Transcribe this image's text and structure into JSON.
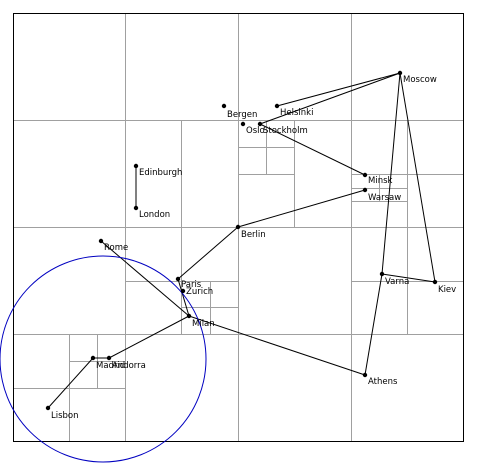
{
  "diagram": {
    "cities": [
      {
        "id": "moscow",
        "label": "Moscow"
      },
      {
        "id": "helsinki",
        "label": "Helsinki"
      },
      {
        "id": "bergen",
        "label": "Bergen"
      },
      {
        "id": "oslo",
        "label": "Oslo"
      },
      {
        "id": "stockholm",
        "label": "Stockholm"
      },
      {
        "id": "edinburgh",
        "label": "Edinburgh"
      },
      {
        "id": "london",
        "label": "London"
      },
      {
        "id": "minsk",
        "label": "Minsk"
      },
      {
        "id": "warsaw",
        "label": "Warsaw"
      },
      {
        "id": "berlin",
        "label": "Berlin"
      },
      {
        "id": "rome",
        "label": "Rome"
      },
      {
        "id": "paris",
        "label": "Paris"
      },
      {
        "id": "zurich",
        "label": "Zurich"
      },
      {
        "id": "milan",
        "label": "Milan"
      },
      {
        "id": "varna",
        "label": "Varna"
      },
      {
        "id": "kiev",
        "label": "Kiev"
      },
      {
        "id": "madrid",
        "label": "Madrid"
      },
      {
        "id": "andorra",
        "label": "Andorra"
      },
      {
        "id": "lisbon",
        "label": "Lisbon"
      },
      {
        "id": "athens",
        "label": "Athens"
      }
    ],
    "colors": {
      "grid": "#a0a0a0",
      "frame": "#000000",
      "route": "#000000",
      "circle": "#0000c0"
    }
  }
}
